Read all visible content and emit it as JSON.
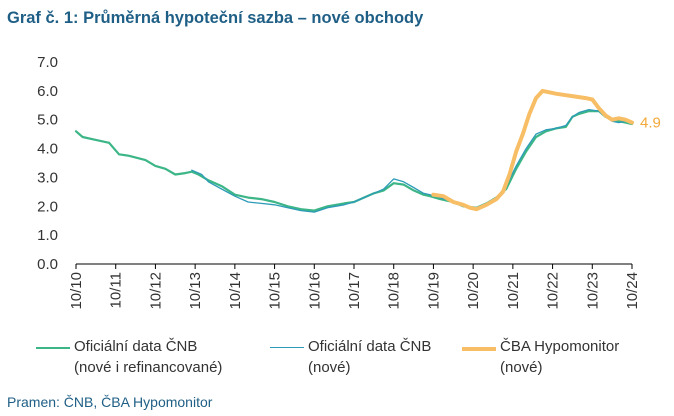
{
  "title": "Graf č. 1: Průměrná hypoteční sazba – nové obchody",
  "source": "Pramen: ČNB, ČBA Hypomonitor",
  "colors": {
    "title": "#1f5f86",
    "series_all": "#3cb587",
    "series_new": "#2d9bb7",
    "series_cba": "#f7be66",
    "end_label": "#f3a93a",
    "axis": "#000000",
    "text": "#333333"
  },
  "legend": [
    {
      "line1": "Oficiální data ČNB",
      "line2": "(nové i refinancované)"
    },
    {
      "line1": "Oficiální data ČNB",
      "line2": "(nové)"
    },
    {
      "line1": "ČBA Hypomonitor",
      "line2": "(nové)"
    }
  ],
  "chart_data": {
    "type": "line",
    "title": "Graf č. 1: Průměrná hypoteční sazba – nové obchody",
    "xlabel": "",
    "ylabel": "",
    "ylim": [
      0,
      7
    ],
    "yticks": [
      "0.0",
      "1.0",
      "2.0",
      "3.0",
      "4.0",
      "5.0",
      "6.0",
      "7.0"
    ],
    "xticks": [
      "10/10",
      "10/11",
      "10/12",
      "10/13",
      "10/14",
      "10/15",
      "10/16",
      "10/17",
      "10/18",
      "10/19",
      "10/20",
      "10/21",
      "10/22",
      "10/23",
      "10/24"
    ],
    "grid": false,
    "legend_position": "bottom",
    "end_label": "4.9",
    "series": [
      {
        "name": "Oficiální data ČNB (nové i refinancované)",
        "points": [
          [
            "10/10",
            4.6
          ],
          [
            "12/10",
            4.4
          ],
          [
            "4/11",
            4.3
          ],
          [
            "8/11",
            4.2
          ],
          [
            "11/11",
            3.8
          ],
          [
            "2/12",
            3.75
          ],
          [
            "7/12",
            3.6
          ],
          [
            "10/12",
            3.4
          ],
          [
            "1/13",
            3.3
          ],
          [
            "4/13",
            3.1
          ],
          [
            "7/13",
            3.15
          ],
          [
            "9/13",
            3.2
          ],
          [
            "11/13",
            3.1
          ],
          [
            "2/14",
            2.9
          ],
          [
            "6/14",
            2.7
          ],
          [
            "10/14",
            2.4
          ],
          [
            "2/15",
            2.3
          ],
          [
            "6/15",
            2.25
          ],
          [
            "10/15",
            2.15
          ],
          [
            "2/16",
            2.0
          ],
          [
            "6/16",
            1.9
          ],
          [
            "10/16",
            1.85
          ],
          [
            "2/17",
            2.0
          ],
          [
            "7/17",
            2.1
          ],
          [
            "10/17",
            2.15
          ],
          [
            "1/18",
            2.3
          ],
          [
            "4/18",
            2.45
          ],
          [
            "7/18",
            2.55
          ],
          [
            "10/18",
            2.8
          ],
          [
            "1/19",
            2.75
          ],
          [
            "4/19",
            2.55
          ],
          [
            "7/19",
            2.4
          ],
          [
            "9/19",
            2.35
          ],
          [
            "12/19",
            2.25
          ],
          [
            "4/20",
            2.15
          ],
          [
            "7/20",
            2.0
          ],
          [
            "11/20",
            1.95
          ],
          [
            "2/21",
            2.1
          ],
          [
            "5/21",
            2.3
          ],
          [
            "8/21",
            2.6
          ],
          [
            "11/21",
            3.3
          ],
          [
            "2/22",
            3.9
          ],
          [
            "5/22",
            4.4
          ],
          [
            "8/22",
            4.6
          ],
          [
            "11/22",
            4.7
          ],
          [
            "2/23",
            4.75
          ],
          [
            "4/23",
            5.1
          ],
          [
            "6/23",
            5.2
          ],
          [
            "9/23",
            5.3
          ],
          [
            "12/23",
            5.3
          ],
          [
            "2/24",
            5.1
          ],
          [
            "4/24",
            5.0
          ],
          [
            "6/24",
            4.95
          ],
          [
            "8/24",
            4.9
          ],
          [
            "10/24",
            4.85
          ]
        ]
      },
      {
        "name": "Oficiální data ČNB (nové)",
        "points": [
          [
            "9/13",
            3.25
          ],
          [
            "12/13",
            3.1
          ],
          [
            "2/14",
            2.85
          ],
          [
            "6/14",
            2.6
          ],
          [
            "10/14",
            2.35
          ],
          [
            "2/15",
            2.15
          ],
          [
            "6/15",
            2.1
          ],
          [
            "10/15",
            2.05
          ],
          [
            "2/16",
            1.95
          ],
          [
            "6/16",
            1.85
          ],
          [
            "10/16",
            1.8
          ],
          [
            "2/17",
            1.95
          ],
          [
            "7/17",
            2.05
          ],
          [
            "10/17",
            2.15
          ],
          [
            "1/18",
            2.3
          ],
          [
            "4/18",
            2.45
          ],
          [
            "7/18",
            2.6
          ],
          [
            "10/18",
            2.95
          ],
          [
            "1/19",
            2.85
          ],
          [
            "4/19",
            2.65
          ],
          [
            "7/19",
            2.45
          ],
          [
            "9/19",
            2.4
          ],
          [
            "12/19",
            2.3
          ],
          [
            "4/20",
            2.15
          ],
          [
            "7/20",
            2.0
          ],
          [
            "11/20",
            1.95
          ],
          [
            "2/21",
            2.1
          ],
          [
            "5/21",
            2.3
          ],
          [
            "8/21",
            2.7
          ],
          [
            "11/21",
            3.4
          ],
          [
            "2/22",
            4.0
          ],
          [
            "5/22",
            4.5
          ],
          [
            "8/22",
            4.65
          ],
          [
            "11/22",
            4.7
          ],
          [
            "2/23",
            4.8
          ],
          [
            "4/23",
            5.1
          ],
          [
            "6/23",
            5.25
          ],
          [
            "9/23",
            5.35
          ],
          [
            "12/23",
            5.3
          ],
          [
            "2/24",
            5.1
          ],
          [
            "4/24",
            4.95
          ],
          [
            "6/24",
            4.9
          ],
          [
            "8/24",
            4.95
          ],
          [
            "10/24",
            4.9
          ]
        ]
      },
      {
        "name": "ČBA Hypomonitor (nové)",
        "points": [
          [
            "10/19",
            2.4
          ],
          [
            "1/20",
            2.35
          ],
          [
            "4/20",
            2.15
          ],
          [
            "7/20",
            2.05
          ],
          [
            "9/20",
            1.95
          ],
          [
            "11/20",
            1.9
          ],
          [
            "2/21",
            2.05
          ],
          [
            "5/21",
            2.25
          ],
          [
            "7/21",
            2.5
          ],
          [
            "9/21",
            3.1
          ],
          [
            "11/21",
            3.9
          ],
          [
            "1/22",
            4.5
          ],
          [
            "3/22",
            5.2
          ],
          [
            "5/22",
            5.75
          ],
          [
            "7/22",
            6.0
          ],
          [
            "9/22",
            5.95
          ],
          [
            "11/22",
            5.9
          ],
          [
            "2/23",
            5.85
          ],
          [
            "5/23",
            5.8
          ],
          [
            "8/23",
            5.75
          ],
          [
            "10/23",
            5.7
          ],
          [
            "12/23",
            5.4
          ],
          [
            "2/24",
            5.15
          ],
          [
            "4/24",
            5.0
          ],
          [
            "6/24",
            5.05
          ],
          [
            "8/24",
            5.0
          ],
          [
            "10/24",
            4.9
          ]
        ]
      }
    ]
  }
}
